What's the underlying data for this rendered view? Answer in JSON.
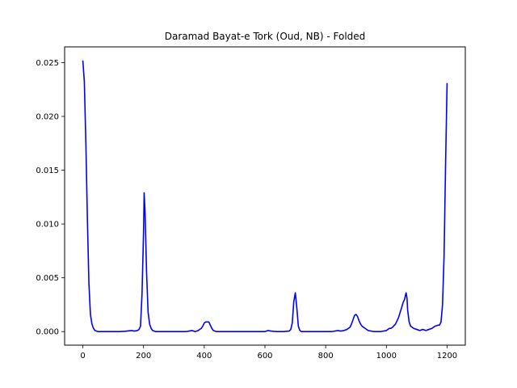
{
  "chart_data": {
    "type": "line",
    "title": "Daramad Bayat-e Tork (Oud, NB) - Folded",
    "xlabel": "",
    "ylabel": "",
    "xlim": [
      -60,
      1260
    ],
    "ylim": [
      -0.00126,
      0.02646
    ],
    "xticks": [
      0,
      200,
      400,
      600,
      800,
      1000,
      1200
    ],
    "xtick_labels": [
      "0",
      "200",
      "400",
      "600",
      "800",
      "1000",
      "1200"
    ],
    "yticks": [
      0.0,
      0.005,
      0.01,
      0.015,
      0.02,
      0.025
    ],
    "ytick_labels": [
      "0.000",
      "0.005",
      "0.010",
      "0.015",
      "0.020",
      "0.025"
    ],
    "grid": false,
    "legend": "none",
    "series": [
      {
        "color": "#0000ff",
        "x": [
          0,
          5,
          10,
          15,
          20,
          25,
          30,
          35,
          40,
          50,
          60,
          80,
          100,
          120,
          140,
          160,
          170,
          180,
          185,
          190,
          195,
          200,
          202,
          205,
          210,
          215,
          220,
          225,
          230,
          240,
          260,
          280,
          300,
          320,
          340,
          350,
          360,
          370,
          380,
          390,
          395,
          400,
          405,
          410,
          415,
          420,
          425,
          430,
          440,
          460,
          480,
          500,
          520,
          540,
          560,
          580,
          600,
          610,
          620,
          630,
          640,
          660,
          680,
          685,
          690,
          695,
          700,
          705,
          710,
          715,
          720,
          740,
          760,
          780,
          800,
          820,
          840,
          850,
          860,
          870,
          880,
          885,
          890,
          895,
          900,
          905,
          910,
          915,
          920,
          930,
          940,
          960,
          980,
          1000,
          1005,
          1010,
          1015,
          1020,
          1030,
          1040,
          1050,
          1055,
          1060,
          1063,
          1065,
          1068,
          1070,
          1075,
          1080,
          1090,
          1100,
          1110,
          1120,
          1130,
          1140,
          1150,
          1160,
          1170,
          1175,
          1180,
          1185,
          1190,
          1195,
          1200
        ],
        "y": [
          0.0252,
          0.0232,
          0.0175,
          0.0105,
          0.0045,
          0.0016,
          0.0007,
          0.0003,
          0.0001,
          0.0,
          0.0,
          0.0,
          0.0,
          0.0,
          3e-05,
          0.0001,
          5e-05,
          0.0001,
          0.0002,
          0.0005,
          0.0035,
          0.0092,
          0.0129,
          0.0111,
          0.0055,
          0.0018,
          0.0007,
          0.0003,
          0.0001,
          0.0,
          0.0,
          0.0,
          0.0,
          0.0,
          0.0,
          5e-05,
          0.0001,
          0.0,
          0.0001,
          0.0003,
          0.0005,
          0.0008,
          0.0009,
          0.0009,
          0.0009,
          0.0006,
          0.0003,
          0.0001,
          0.0,
          0.0,
          0.0,
          0.0,
          0.0,
          0.0,
          0.0,
          0.0,
          0.0,
          0.0001,
          5e-05,
          2e-05,
          0.0,
          0.0,
          5e-05,
          0.0002,
          0.0008,
          0.0028,
          0.0036,
          0.0022,
          0.0005,
          0.0001,
          0.0,
          0.0,
          0.0,
          0.0,
          0.0,
          0.0,
          0.0001,
          5e-05,
          0.0001,
          0.0002,
          0.0004,
          0.0007,
          0.0011,
          0.0015,
          0.0016,
          0.0014,
          0.001,
          0.0007,
          0.0005,
          0.0003,
          0.0001,
          0.0,
          0.0,
          0.0001,
          0.0002,
          0.0003,
          0.0003,
          0.0004,
          0.0007,
          0.0013,
          0.0022,
          0.0027,
          0.003,
          0.0034,
          0.0036,
          0.0031,
          0.002,
          0.0009,
          0.0005,
          0.0003,
          0.0002,
          0.0001,
          0.0002,
          0.0001,
          0.0002,
          0.0003,
          0.0005,
          0.0006,
          0.0006,
          0.0009,
          0.0025,
          0.007,
          0.0155,
          0.0231
        ]
      }
    ]
  }
}
